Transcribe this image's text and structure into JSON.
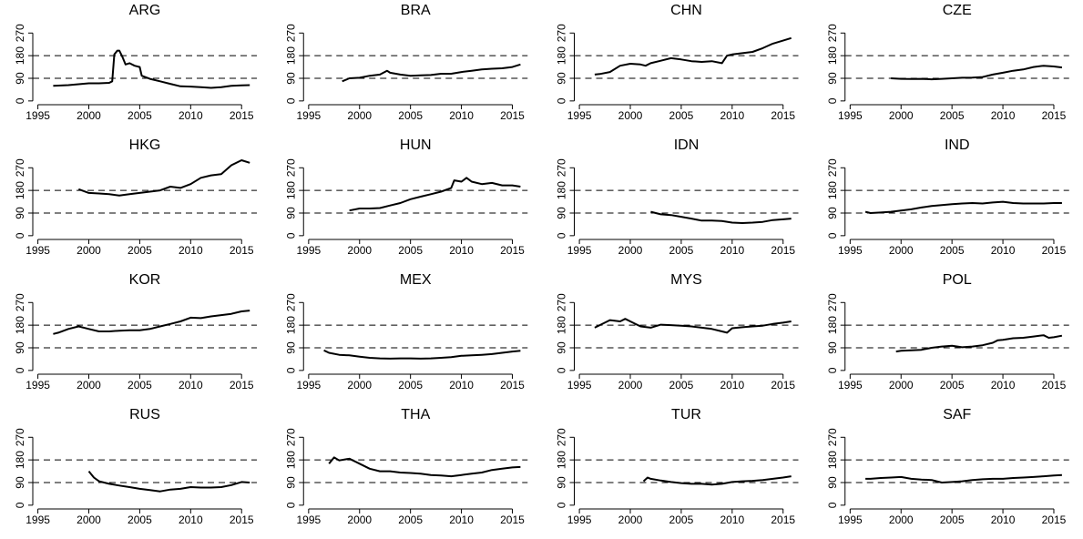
{
  "chart_data": [
    {
      "type": "line",
      "title": "ARG",
      "color": "#000000",
      "x": [
        1996.5,
        1998,
        2000,
        2001,
        2002,
        2002.3,
        2002.5,
        2002.8,
        2003,
        2003.3,
        2003.6,
        2004,
        2004.5,
        2005,
        2005.2,
        2006,
        2007,
        2008,
        2009,
        2010,
        2011,
        2012,
        2013,
        2014,
        2015,
        2015.8
      ],
      "values": [
        60,
        63,
        70,
        70,
        72,
        78,
        185,
        200,
        200,
        175,
        145,
        150,
        140,
        135,
        100,
        88,
        78,
        68,
        58,
        57,
        55,
        52,
        55,
        60,
        62,
        63
      ],
      "xlim": [
        1994.5,
        2016.5
      ],
      "ylim": [
        -15,
        300
      ],
      "xticks": [
        1995,
        2000,
        2005,
        2010,
        2015
      ],
      "yticks": [
        0,
        90,
        180,
        270
      ],
      "hlines": [
        90,
        180
      ]
    },
    {
      "type": "line",
      "title": "BRA",
      "color": "#000000",
      "x": [
        1998.3,
        1999,
        2000,
        2001,
        2002,
        2002.7,
        2003,
        2004,
        2005,
        2006,
        2007,
        2008,
        2009,
        2010,
        2011,
        2012,
        2013,
        2014,
        2015,
        2015.8
      ],
      "values": [
        78,
        90,
        92,
        100,
        105,
        120,
        112,
        105,
        100,
        102,
        103,
        108,
        108,
        115,
        120,
        125,
        128,
        130,
        135,
        145
      ],
      "xlim": [
        1994.5,
        2016.5
      ],
      "ylim": [
        -15,
        300
      ],
      "xticks": [
        1995,
        2000,
        2005,
        2010,
        2015
      ],
      "yticks": [
        0,
        90,
        180,
        270
      ],
      "hlines": [
        90,
        180
      ]
    },
    {
      "type": "line",
      "title": "CHN",
      "color": "#000000",
      "x": [
        1996.5,
        1997,
        1998,
        1999,
        2000,
        2001,
        2001.5,
        2002,
        2003,
        2004,
        2005,
        2006,
        2007,
        2008,
        2009,
        2009.5,
        2010,
        2011,
        2012,
        2013,
        2014,
        2015,
        2015.8
      ],
      "values": [
        105,
        107,
        115,
        140,
        148,
        145,
        140,
        150,
        160,
        170,
        165,
        158,
        155,
        158,
        150,
        180,
        185,
        190,
        195,
        210,
        228,
        240,
        250
      ],
      "xlim": [
        1994.5,
        2016.5
      ],
      "ylim": [
        -15,
        300
      ],
      "xticks": [
        1995,
        2000,
        2005,
        2010,
        2015
      ],
      "yticks": [
        0,
        90,
        180,
        270
      ],
      "hlines": [
        90,
        180
      ]
    },
    {
      "type": "line",
      "title": "CZE",
      "color": "#000000",
      "x": [
        1999,
        2000,
        2001,
        2002,
        2003,
        2004,
        2005,
        2006,
        2007,
        2008,
        2009,
        2010,
        2011,
        2012,
        2013,
        2014,
        2015,
        2015.8
      ],
      "values": [
        90,
        88,
        87,
        88,
        86,
        88,
        90,
        92,
        93,
        95,
        105,
        112,
        120,
        125,
        135,
        140,
        137,
        133
      ],
      "xlim": [
        1994.5,
        2016.5
      ],
      "ylim": [
        -15,
        300
      ],
      "xticks": [
        1995,
        2000,
        2005,
        2010,
        2015
      ],
      "yticks": [
        0,
        90,
        180,
        270
      ],
      "hlines": [
        90,
        180
      ]
    },
    {
      "type": "line",
      "title": "HKG",
      "color": "#000000",
      "x": [
        1999,
        2000,
        2001,
        2002,
        2003,
        2004,
        2005,
        2006,
        2007,
        2008,
        2009,
        2010,
        2011,
        2012,
        2013,
        2014,
        2015,
        2015.8
      ],
      "values": [
        185,
        170,
        168,
        165,
        160,
        165,
        170,
        175,
        180,
        195,
        190,
        205,
        230,
        240,
        245,
        280,
        300,
        290
      ],
      "xlim": [
        1994.5,
        2016.5
      ],
      "ylim": [
        -15,
        300
      ],
      "xticks": [
        1995,
        2000,
        2005,
        2010,
        2015
      ],
      "yticks": [
        0,
        90,
        180,
        270
      ],
      "hlines": [
        90,
        180
      ]
    },
    {
      "type": "line",
      "title": "HUN",
      "color": "#000000",
      "x": [
        1999,
        2000,
        2001,
        2002,
        2003,
        2004,
        2005,
        2006,
        2007,
        2008,
        2009,
        2009.3,
        2010,
        2010.5,
        2011,
        2012,
        2013,
        2014,
        2015,
        2015.8
      ],
      "values": [
        100,
        108,
        108,
        110,
        120,
        130,
        145,
        155,
        165,
        175,
        190,
        220,
        215,
        230,
        215,
        205,
        210,
        200,
        200,
        195
      ],
      "xlim": [
        1994.5,
        2016.5
      ],
      "ylim": [
        -15,
        300
      ],
      "xticks": [
        1995,
        2000,
        2005,
        2010,
        2015
      ],
      "yticks": [
        0,
        90,
        180,
        270
      ],
      "hlines": [
        90,
        180
      ]
    },
    {
      "type": "line",
      "title": "IDN",
      "color": "#000000",
      "x": [
        2002,
        2003,
        2004,
        2005,
        2006,
        2007,
        2008,
        2009,
        2010,
        2011,
        2012,
        2013,
        2014,
        2015,
        2015.8
      ],
      "values": [
        95,
        85,
        82,
        75,
        68,
        60,
        60,
        58,
        52,
        50,
        52,
        55,
        62,
        65,
        68
      ],
      "xlim": [
        1994.5,
        2016.5
      ],
      "ylim": [
        -15,
        300
      ],
      "xticks": [
        1995,
        2000,
        2005,
        2010,
        2015
      ],
      "yticks": [
        0,
        90,
        180,
        270
      ],
      "hlines": [
        90,
        180
      ]
    },
    {
      "type": "line",
      "title": "IND",
      "color": "#000000",
      "x": [
        1996.5,
        1997,
        1998,
        1999,
        2000,
        2001,
        2002,
        2003,
        2004,
        2005,
        2006,
        2007,
        2008,
        2009,
        2010,
        2011,
        2012,
        2013,
        2014,
        2015,
        2015.8
      ],
      "values": [
        95,
        90,
        92,
        95,
        100,
        105,
        112,
        118,
        122,
        125,
        128,
        130,
        128,
        132,
        135,
        130,
        128,
        128,
        128,
        130,
        130
      ],
      "xlim": [
        1994.5,
        2016.5
      ],
      "ylim": [
        -15,
        300
      ],
      "xticks": [
        1995,
        2000,
        2005,
        2010,
        2015
      ],
      "yticks": [
        0,
        90,
        180,
        270
      ],
      "hlines": [
        90,
        180
      ]
    },
    {
      "type": "line",
      "title": "KOR",
      "color": "#000000",
      "x": [
        1996.5,
        1997,
        1998,
        1999,
        2000,
        2001,
        2002,
        2003,
        2004,
        2005,
        2006,
        2007,
        2008,
        2009,
        2010,
        2011,
        2012,
        2013,
        2014,
        2015,
        2015.8
      ],
      "values": [
        145,
        150,
        165,
        175,
        165,
        155,
        155,
        158,
        160,
        160,
        165,
        175,
        185,
        195,
        210,
        208,
        215,
        220,
        225,
        235,
        238
      ],
      "xlim": [
        1994.5,
        2016.5
      ],
      "ylim": [
        -15,
        300
      ],
      "xticks": [
        1995,
        2000,
        2005,
        2010,
        2015
      ],
      "yticks": [
        0,
        90,
        180,
        270
      ],
      "hlines": [
        90,
        180
      ]
    },
    {
      "type": "line",
      "title": "MEX",
      "color": "#000000",
      "x": [
        1996.5,
        1997,
        1998,
        1999,
        2000,
        2001,
        2002,
        2003,
        2004,
        2005,
        2006,
        2007,
        2008,
        2009,
        2010,
        2011,
        2012,
        2013,
        2014,
        2015,
        2015.8
      ],
      "values": [
        80,
        70,
        62,
        60,
        55,
        50,
        48,
        47,
        48,
        48,
        47,
        48,
        50,
        53,
        58,
        60,
        62,
        65,
        70,
        75,
        78
      ],
      "xlim": [
        1994.5,
        2016.5
      ],
      "ylim": [
        -15,
        300
      ],
      "xticks": [
        1995,
        2000,
        2005,
        2010,
        2015
      ],
      "yticks": [
        0,
        90,
        180,
        270
      ],
      "hlines": [
        90,
        180
      ]
    },
    {
      "type": "line",
      "title": "MYS",
      "color": "#000000",
      "x": [
        1996.5,
        1997,
        1998,
        1999,
        1999.5,
        2000,
        2001,
        2002,
        2003,
        2004,
        2005,
        2006,
        2007,
        2008,
        2009,
        2009.5,
        2010,
        2011,
        2012,
        2013,
        2014,
        2015,
        2015.8
      ],
      "values": [
        170,
        180,
        200,
        195,
        205,
        195,
        175,
        170,
        182,
        180,
        178,
        175,
        170,
        165,
        155,
        150,
        168,
        172,
        175,
        178,
        185,
        190,
        195
      ],
      "xlim": [
        1994.5,
        2016.5
      ],
      "ylim": [
        -15,
        300
      ],
      "xticks": [
        1995,
        2000,
        2005,
        2010,
        2015
      ],
      "yticks": [
        0,
        90,
        180,
        270
      ],
      "hlines": [
        90,
        180
      ]
    },
    {
      "type": "line",
      "title": "POL",
      "color": "#000000",
      "x": [
        1999.5,
        2000,
        2001,
        2002,
        2003,
        2004,
        2005,
        2006,
        2007,
        2008,
        2009,
        2009.5,
        2010,
        2011,
        2012,
        2013,
        2014,
        2014.5,
        2015,
        2015.8
      ],
      "values": [
        75,
        78,
        80,
        82,
        90,
        95,
        98,
        92,
        95,
        100,
        110,
        120,
        122,
        128,
        130,
        135,
        140,
        130,
        132,
        138
      ],
      "xlim": [
        1994.5,
        2016.5
      ],
      "ylim": [
        -15,
        300
      ],
      "xticks": [
        1995,
        2000,
        2005,
        2010,
        2015
      ],
      "yticks": [
        0,
        90,
        180,
        270
      ],
      "hlines": [
        90,
        180
      ]
    },
    {
      "type": "line",
      "title": "RUS",
      "color": "#000000",
      "x": [
        2000,
        2000.5,
        2001,
        2002,
        2003,
        2004,
        2005,
        2006,
        2007,
        2008,
        2009,
        2010,
        2011,
        2012,
        2013,
        2014,
        2015,
        2015.8
      ],
      "values": [
        135,
        110,
        95,
        85,
        78,
        72,
        65,
        60,
        55,
        62,
        65,
        72,
        70,
        70,
        72,
        80,
        92,
        90
      ],
      "xlim": [
        1994.5,
        2016.5
      ],
      "ylim": [
        -15,
        300
      ],
      "xticks": [
        1995,
        2000,
        2005,
        2010,
        2015
      ],
      "yticks": [
        0,
        90,
        180,
        270
      ],
      "hlines": [
        90,
        180
      ]
    },
    {
      "type": "line",
      "title": "THA",
      "color": "#000000",
      "x": [
        1997,
        1997.5,
        1998,
        1999,
        2000,
        2001,
        2002,
        2003,
        2004,
        2005,
        2006,
        2007,
        2008,
        2009,
        2010,
        2011,
        2012,
        2013,
        2014,
        2015,
        2015.8
      ],
      "values": [
        165,
        190,
        178,
        185,
        165,
        145,
        135,
        135,
        130,
        128,
        125,
        120,
        118,
        115,
        120,
        125,
        130,
        140,
        145,
        150,
        152
      ],
      "xlim": [
        1994.5,
        2016.5
      ],
      "ylim": [
        -15,
        300
      ],
      "xticks": [
        1995,
        2000,
        2005,
        2010,
        2015
      ],
      "yticks": [
        0,
        90,
        180,
        270
      ],
      "hlines": [
        90,
        180
      ]
    },
    {
      "type": "line",
      "title": "TUR",
      "color": "#000000",
      "x": [
        2001.3,
        2001.7,
        2002,
        2003,
        2004,
        2005,
        2006,
        2007,
        2008,
        2009,
        2010,
        2011,
        2012,
        2013,
        2014,
        2015,
        2015.8
      ],
      "values": [
        95,
        110,
        105,
        98,
        92,
        88,
        85,
        85,
        82,
        85,
        92,
        95,
        97,
        100,
        105,
        110,
        115
      ],
      "xlim": [
        1994.5,
        2016.5
      ],
      "ylim": [
        -15,
        300
      ],
      "xticks": [
        1995,
        2000,
        2005,
        2010,
        2015
      ],
      "yticks": [
        0,
        90,
        180,
        270
      ],
      "hlines": [
        90,
        180
      ]
    },
    {
      "type": "line",
      "title": "SAF",
      "color": "#000000",
      "x": [
        1996.5,
        1997,
        1998,
        1999,
        2000,
        2001,
        2002,
        2003,
        2004,
        2005,
        2006,
        2007,
        2008,
        2009,
        2010,
        2011,
        2012,
        2013,
        2014,
        2015,
        2015.8
      ],
      "values": [
        105,
        105,
        108,
        110,
        112,
        105,
        102,
        100,
        90,
        92,
        95,
        100,
        103,
        105,
        105,
        108,
        110,
        112,
        115,
        118,
        120
      ],
      "xlim": [
        1994.5,
        2016.5
      ],
      "ylim": [
        -15,
        300
      ],
      "xticks": [
        1995,
        2000,
        2005,
        2010,
        2015
      ],
      "yticks": [
        0,
        90,
        180,
        270
      ],
      "hlines": [
        90,
        180
      ]
    }
  ]
}
